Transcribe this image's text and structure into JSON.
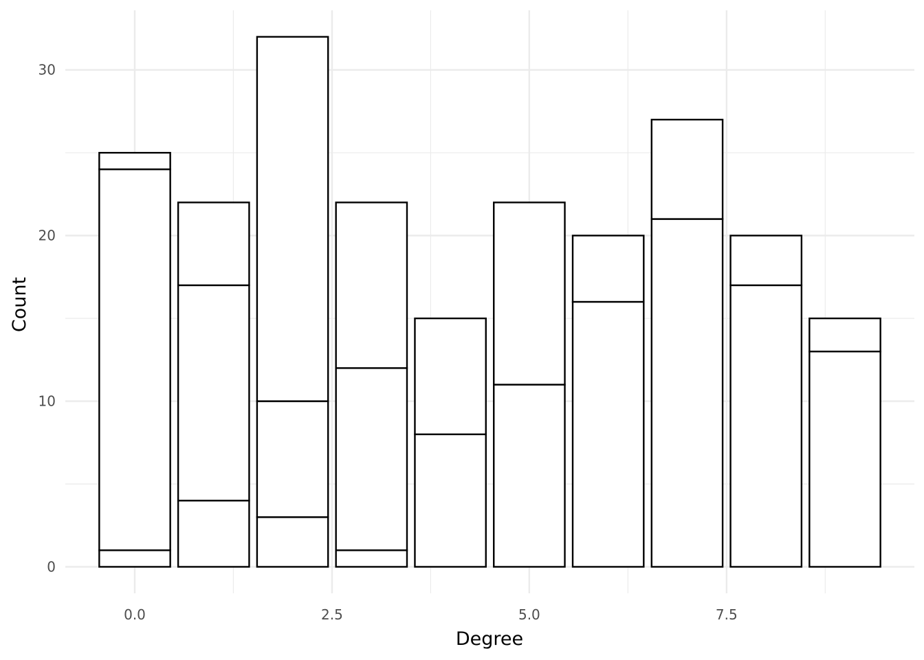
{
  "chart_data": {
    "type": "bar",
    "stacked": true,
    "title": "",
    "xlabel": "Degree",
    "ylabel": "Count",
    "x": [
      0,
      1,
      2,
      3,
      4,
      5,
      6,
      7,
      8,
      9
    ],
    "segment_boundaries": [
      [
        1,
        24,
        25
      ],
      [
        4,
        17,
        22
      ],
      [
        3,
        10,
        32
      ],
      [
        1,
        12,
        22
      ],
      [
        8,
        15
      ],
      [
        11,
        22
      ],
      [
        16,
        20
      ],
      [
        21,
        27
      ],
      [
        17,
        20
      ],
      [
        13,
        15
      ]
    ],
    "totals": [
      25,
      22,
      32,
      22,
      15,
      22,
      20,
      27,
      20,
      15
    ],
    "xlim": [
      -0.88,
      9.88
    ],
    "ylim": [
      -1.6,
      33.6
    ],
    "x_ticks": [
      0,
      2.5,
      5,
      7.5
    ],
    "x_tick_labels": [
      "0.0",
      "2.5",
      "5.0",
      "7.5"
    ],
    "y_ticks": [
      0,
      10,
      20,
      30
    ],
    "y_tick_labels": [
      "0",
      "10",
      "20",
      "30"
    ],
    "grid": true,
    "bar_fill": "#ffffff",
    "bar_stroke": "#000000",
    "grid_color": "#ebebeb"
  }
}
